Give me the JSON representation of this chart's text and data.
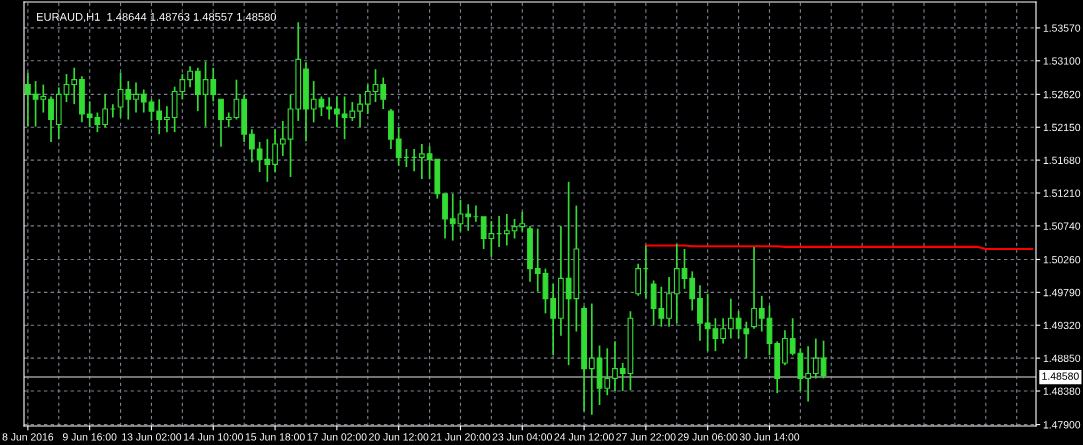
{
  "chart_data": {
    "type": "candlestick",
    "title": "EURAUD,H1  1.48644 1.48763 1.48557 1.48580",
    "categories": [
      "8 Jun 2016",
      null,
      null,
      null,
      null,
      null,
      null,
      null,
      "9 Jun 16:00",
      null,
      null,
      null,
      null,
      null,
      null,
      null,
      "13 Jun 02:00",
      null,
      null,
      null,
      null,
      null,
      null,
      null,
      "14 Jun 10:00",
      null,
      null,
      null,
      null,
      null,
      null,
      null,
      "15 Jun 18:00",
      null,
      null,
      null,
      null,
      null,
      null,
      null,
      "17 Jun 02:00",
      null,
      null,
      null,
      null,
      null,
      null,
      null,
      "20 Jun 12:00",
      null,
      null,
      null,
      null,
      null,
      null,
      null,
      "21 Jun 20:00",
      null,
      null,
      null,
      null,
      null,
      null,
      null,
      "23 Jun 04:00",
      null,
      null,
      null,
      null,
      null,
      null,
      null,
      "24 Jun 12:00",
      null,
      null,
      null,
      null,
      null,
      null,
      null,
      "27 Jun 22:00",
      null,
      null,
      null,
      null,
      null,
      null,
      null,
      "29 Jun 06:00",
      null,
      null,
      null,
      null,
      null,
      null,
      null,
      "30 Jun 14:00",
      null,
      null,
      null,
      null,
      null,
      null,
      null,
      null,
      null,
      null,
      null,
      null,
      null,
      null,
      null,
      null,
      null,
      null,
      null,
      null,
      null,
      null,
      null,
      null,
      null,
      null,
      null,
      null,
      null,
      null,
      null,
      null,
      null,
      null
    ],
    "ohlc": [
      [
        1.5276,
        1.5293,
        1.5216,
        1.5262
      ],
      [
        1.5262,
        1.5281,
        1.5216,
        1.5255
      ],
      [
        1.5255,
        1.5276,
        1.5236,
        1.5259
      ],
      [
        1.5255,
        1.5259,
        1.5194,
        1.5226
      ],
      [
        1.5219,
        1.5272,
        1.5198,
        1.5262
      ],
      [
        1.5262,
        1.5291,
        1.5251,
        1.5276
      ],
      [
        1.5276,
        1.53,
        1.5248,
        1.5283
      ],
      [
        1.5283,
        1.5288,
        1.5222,
        1.5234
      ],
      [
        1.5234,
        1.5252,
        1.5215,
        1.5229
      ],
      [
        1.5229,
        1.5236,
        1.5208,
        1.5219
      ],
      [
        1.5219,
        1.5262,
        1.5215,
        1.5241
      ],
      [
        1.5241,
        1.5248,
        1.5229,
        1.5241
      ],
      [
        1.5244,
        1.5293,
        1.5229,
        1.5269
      ],
      [
        1.5269,
        1.5281,
        1.5226,
        1.5255
      ],
      [
        1.5255,
        1.5279,
        1.5236,
        1.5262
      ],
      [
        1.5262,
        1.5269,
        1.5236,
        1.5251
      ],
      [
        1.5251,
        1.5255,
        1.5224,
        1.5238
      ],
      [
        1.5238,
        1.5255,
        1.5205,
        1.5226
      ],
      [
        1.5226,
        1.5245,
        1.5208,
        1.5229
      ],
      [
        1.5229,
        1.5273,
        1.5208,
        1.5266
      ],
      [
        1.5266,
        1.5291,
        1.5255,
        1.5283
      ],
      [
        1.5283,
        1.5302,
        1.5272,
        1.5295
      ],
      [
        1.5295,
        1.53,
        1.5238,
        1.5262
      ],
      [
        1.5262,
        1.5309,
        1.5216,
        1.5283
      ],
      [
        1.5283,
        1.53,
        1.5252,
        1.5262
      ],
      [
        1.5255,
        1.5255,
        1.5187,
        1.5226
      ],
      [
        1.5226,
        1.5236,
        1.5215,
        1.5229
      ],
      [
        1.5229,
        1.5283,
        1.5226,
        1.5255
      ],
      [
        1.5255,
        1.5262,
        1.5194,
        1.5205
      ],
      [
        1.5205,
        1.5212,
        1.5165,
        1.5184
      ],
      [
        1.5184,
        1.5194,
        1.5151,
        1.5169
      ],
      [
        1.5169,
        1.5198,
        1.5137,
        1.5162
      ],
      [
        1.5162,
        1.5212,
        1.5151,
        1.5191
      ],
      [
        1.5191,
        1.5224,
        1.5174,
        1.5198
      ],
      [
        1.5198,
        1.5262,
        1.5144,
        1.5241
      ],
      [
        1.5241,
        1.5365,
        1.5224,
        1.5312
      ],
      [
        1.5298,
        1.5308,
        1.5195,
        1.5241
      ],
      [
        1.5241,
        1.5281,
        1.5222,
        1.5255
      ],
      [
        1.5255,
        1.5259,
        1.5231,
        1.5244
      ],
      [
        1.5244,
        1.5258,
        1.5226,
        1.5241
      ],
      [
        1.5241,
        1.5259,
        1.5215,
        1.5234
      ],
      [
        1.5234,
        1.5259,
        1.5198,
        1.5229
      ],
      [
        1.5229,
        1.5251,
        1.5224,
        1.5238
      ],
      [
        1.5238,
        1.5262,
        1.5215,
        1.5248
      ],
      [
        1.5248,
        1.5276,
        1.5234,
        1.5266
      ],
      [
        1.5266,
        1.5298,
        1.5251,
        1.5276
      ],
      [
        1.5276,
        1.5286,
        1.5241,
        1.5255
      ],
      [
        1.5238,
        1.5241,
        1.5184,
        1.5198
      ],
      [
        1.5198,
        1.5215,
        1.516,
        1.5172
      ],
      [
        1.5172,
        1.5184,
        1.5158,
        1.5172
      ],
      [
        1.5172,
        1.5184,
        1.5152,
        1.5172
      ],
      [
        1.5172,
        1.5191,
        1.5141,
        1.5177
      ],
      [
        1.5177,
        1.5188,
        1.5141,
        1.5169
      ],
      [
        1.5169,
        1.5169,
        1.5113,
        1.512
      ],
      [
        1.512,
        1.512,
        1.5056,
        1.5084
      ],
      [
        1.5084,
        1.512,
        1.5053,
        1.5077
      ],
      [
        1.5077,
        1.5111,
        1.5066,
        1.5091
      ],
      [
        1.5091,
        1.5105,
        1.5067,
        1.5087
      ],
      [
        1.5087,
        1.5103,
        1.508,
        1.5087
      ],
      [
        1.5087,
        1.5087,
        1.5041,
        1.5056
      ],
      [
        1.5056,
        1.5081,
        1.503,
        1.5063
      ],
      [
        1.5063,
        1.5088,
        1.5044,
        1.5063
      ],
      [
        1.5063,
        1.5091,
        1.5046,
        1.5067
      ],
      [
        1.5067,
        1.5084,
        1.5056,
        1.5073
      ],
      [
        1.5073,
        1.5094,
        1.5066,
        1.5077
      ],
      [
        1.507,
        1.5074,
        1.4994,
        1.5013
      ],
      [
        1.5013,
        1.507,
        1.498,
        1.5006
      ],
      [
        1.5006,
        1.5013,
        1.4949,
        1.497
      ],
      [
        1.497,
        1.4991,
        1.4889,
        1.4942
      ],
      [
        1.4942,
        1.5074,
        1.4917,
        1.4999
      ],
      [
        1.4999,
        1.5137,
        1.4875,
        1.497
      ],
      [
        1.497,
        1.5103,
        1.4923,
        1.5041
      ],
      [
        1.4956,
        1.4959,
        1.4809,
        1.487
      ],
      [
        1.487,
        1.4963,
        1.4804,
        1.4885
      ],
      [
        1.4885,
        1.4903,
        1.4818,
        1.4842
      ],
      [
        1.4842,
        1.4899,
        1.4832,
        1.4856
      ],
      [
        1.4856,
        1.4909,
        1.4838,
        1.487
      ],
      [
        1.487,
        1.4878,
        1.4838,
        1.4863
      ],
      [
        1.4863,
        1.4952,
        1.4839,
        1.4942
      ],
      [
        1.4977,
        1.502,
        1.4974,
        1.5013
      ],
      [
        1.5013,
        1.5046,
        1.497,
        1.5013
      ],
      [
        1.4991,
        1.4996,
        1.4932,
        1.4956
      ],
      [
        1.4956,
        1.4987,
        1.493,
        1.4942
      ],
      [
        1.4942,
        1.5001,
        1.493,
        1.4977
      ],
      [
        1.4977,
        1.5048,
        1.4935,
        1.5013
      ],
      [
        1.5013,
        1.5041,
        1.4984,
        1.4999
      ],
      [
        1.4999,
        1.5009,
        1.4953,
        1.497
      ],
      [
        1.497,
        1.4989,
        1.491,
        1.4935
      ],
      [
        1.4935,
        1.4977,
        1.4895,
        1.4927
      ],
      [
        1.4927,
        1.4942,
        1.4895,
        1.4913
      ],
      [
        1.4913,
        1.4942,
        1.4906,
        1.4927
      ],
      [
        1.4927,
        1.497,
        1.4913,
        1.4942
      ],
      [
        1.4942,
        1.4952,
        1.4913,
        1.4927
      ],
      [
        1.4927,
        1.4937,
        1.4885,
        1.492
      ],
      [
        1.493,
        1.5044,
        1.4927,
        1.4956
      ],
      [
        1.4956,
        1.4974,
        1.4923,
        1.4942
      ],
      [
        1.4942,
        1.496,
        1.4889,
        1.4906
      ],
      [
        1.4906,
        1.4909,
        1.4835,
        1.4856
      ],
      [
        1.4878,
        1.4925,
        1.4875,
        1.4913
      ],
      [
        1.4913,
        1.4942,
        1.4889,
        1.4892
      ],
      [
        1.4892,
        1.4899,
        1.4838,
        1.4856
      ],
      [
        1.4856,
        1.4902,
        1.4823,
        1.4863
      ],
      [
        1.4863,
        1.4913,
        1.4856,
        1.4885
      ],
      [
        1.4885,
        1.491,
        1.4856,
        1.486
      ],
      null,
      null,
      null,
      null,
      null,
      null,
      null,
      null,
      null,
      null,
      null,
      null,
      null,
      null,
      null,
      null,
      null,
      null,
      null,
      null,
      null,
      null,
      null,
      null,
      null,
      null,
      null
    ],
    "color": "#33dd33",
    "series": [
      {
        "type": "line",
        "color": "#ff0000",
        "values": [
          null,
          null,
          null,
          null,
          null,
          null,
          null,
          null,
          null,
          null,
          null,
          null,
          null,
          null,
          null,
          null,
          null,
          null,
          null,
          null,
          null,
          null,
          null,
          null,
          null,
          null,
          null,
          null,
          null,
          null,
          null,
          null,
          null,
          null,
          null,
          null,
          null,
          null,
          null,
          null,
          null,
          null,
          null,
          null,
          null,
          null,
          null,
          null,
          null,
          null,
          null,
          null,
          null,
          null,
          null,
          null,
          null,
          null,
          null,
          null,
          null,
          null,
          null,
          null,
          null,
          null,
          null,
          null,
          null,
          null,
          null,
          null,
          null,
          null,
          null,
          null,
          null,
          null,
          null,
          null,
          1.5046,
          1.5046,
          1.5046,
          1.5046,
          1.5046,
          1.5046,
          1.5045,
          1.5045,
          1.5045,
          1.5045,
          1.5045,
          1.5045,
          1.5045,
          1.5045,
          1.5045,
          1.5045,
          1.5045,
          1.5045,
          1.5044,
          1.5044,
          1.5044,
          1.5044,
          1.5044,
          1.5044,
          1.5044,
          1.5044,
          1.5044,
          1.5044,
          1.5044,
          1.5044,
          1.5044,
          1.5044,
          1.5044,
          1.5044,
          1.5044,
          1.5044,
          1.5044,
          1.5044,
          1.5044,
          1.5044,
          1.5044,
          1.5044,
          1.5044,
          1.5044,
          1.5041,
          1.5041,
          1.5041,
          1.5041,
          1.5041,
          1.5041,
          1.5041
        ]
      }
    ],
    "ref_lines": [
      {
        "axis": "y",
        "value": 1.4858,
        "label": "1.48580",
        "color": "#9a9a9a"
      }
    ],
    "ylim": [
      1.4788,
      1.5394
    ],
    "yticks": [
      {
        "value": 1.5357,
        "label": "1.53570"
      },
      {
        "value": 1.531,
        "label": "1.53100"
      },
      {
        "value": 1.5262,
        "label": "1.52620"
      },
      {
        "value": 1.5215,
        "label": "1.52150"
      },
      {
        "value": 1.5168,
        "label": "1.51680"
      },
      {
        "value": 1.5121,
        "label": "1.51210"
      },
      {
        "value": 1.5074,
        "label": "1.50740"
      },
      {
        "value": 1.5026,
        "label": "1.50260"
      },
      {
        "value": 1.4979,
        "label": "1.49790"
      },
      {
        "value": 1.4932,
        "label": "1.49320"
      },
      {
        "value": 1.4885,
        "label": "1.48850"
      },
      {
        "value": 1.4838,
        "label": "1.48380"
      },
      {
        "value": 1.479,
        "label": "1.47900"
      }
    ],
    "grid": true,
    "legend": false
  }
}
